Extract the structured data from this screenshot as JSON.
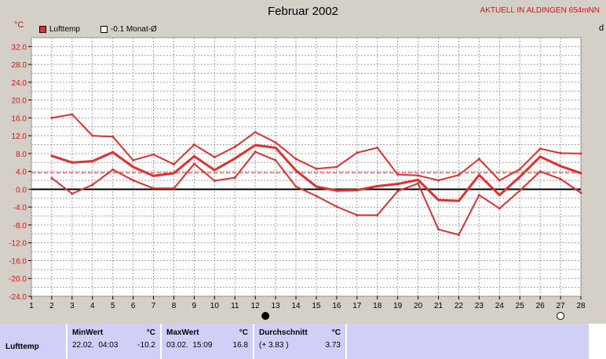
{
  "header": {
    "title": "Februar 2002",
    "station": "AKTUELL IN ALDINGEN 654mNN",
    "unit": "°C",
    "edge_letter": "d"
  },
  "legend": [
    {
      "label": "Lufttemp",
      "color": "#e03030",
      "filled": true
    },
    {
      "label": "-0.1 Monat-Ø",
      "color": "#ffffff",
      "filled": false
    }
  ],
  "chart_data": {
    "type": "line",
    "title": "Februar 2002",
    "ylabel": "°C",
    "x": [
      2,
      3,
      4,
      5,
      6,
      7,
      8,
      9,
      10,
      11,
      12,
      13,
      14,
      15,
      16,
      17,
      18,
      19,
      20,
      21,
      22,
      23,
      24,
      25,
      26,
      27,
      28
    ],
    "xticks": [
      1,
      2,
      3,
      4,
      5,
      6,
      7,
      8,
      9,
      10,
      11,
      12,
      13,
      14,
      15,
      16,
      17,
      18,
      19,
      20,
      21,
      22,
      23,
      24,
      25,
      26,
      27,
      28
    ],
    "yticks": [
      "32.0",
      "28.0",
      "24.0",
      "20.0",
      "16.0",
      "12.0",
      "8.0",
      "4.0",
      "0.0",
      "-4.0",
      "-8.0",
      "-12.0",
      "-16.0",
      "-20.0",
      "-24.0"
    ],
    "ylim": [
      -24,
      34
    ],
    "xlim": [
      1,
      28
    ],
    "grid": true,
    "reference_line": 3.73,
    "series": [
      {
        "values": [
          16,
          16.8,
          12,
          11.8,
          6.5,
          7.8,
          5.6,
          10,
          7.2,
          9.5,
          12.8,
          10.5,
          6.8,
          4.6,
          5,
          8.2,
          9.3,
          3.3,
          3.1,
          2,
          3.2,
          6.8,
          2,
          4.5,
          9.1,
          8.1,
          8
        ],
        "width": 2
      },
      {
        "values": [
          7.5,
          6,
          6.3,
          8.3,
          5,
          3,
          3.6,
          7.4,
          4.3,
          6.9,
          9.9,
          9.3,
          4.2,
          0.6,
          -0.3,
          -0.2,
          0.7,
          1.2,
          2.1,
          -2.4,
          -2.6,
          3.2,
          -1.3,
          2.8,
          7.3,
          5.2,
          3.6
        ],
        "width": 3
      },
      {
        "values": [
          2.5,
          -1,
          1,
          4.4,
          2,
          0.2,
          0.2,
          5.7,
          1.9,
          2.6,
          8.4,
          6.5,
          0.6,
          -1.5,
          -3.9,
          -5.8,
          -5.8,
          -0.4,
          1.3,
          -9,
          -10.2,
          -1.3,
          -4.3,
          -0.3,
          4,
          2.3,
          -0.8
        ],
        "width": 2
      }
    ],
    "markers": [
      {
        "x": 12.5,
        "label": "new-moon",
        "color": "#000000"
      },
      {
        "x": 27,
        "label": "full-moon",
        "color": "#ffffff"
      }
    ]
  },
  "stats": {
    "row_label": "Lufttemp",
    "min": {
      "header": "MinWert",
      "unit": "°C",
      "date": "22.02.",
      "time": "04:03",
      "value": "-10.2"
    },
    "max": {
      "header": "MaxWert",
      "unit": "°C",
      "date": "03.02.",
      "time": "15:09",
      "value": "16.8"
    },
    "avg": {
      "header": "Durchschnitt",
      "unit": "°C",
      "delta": "(+ 3.83 )",
      "value": "3.73"
    }
  }
}
